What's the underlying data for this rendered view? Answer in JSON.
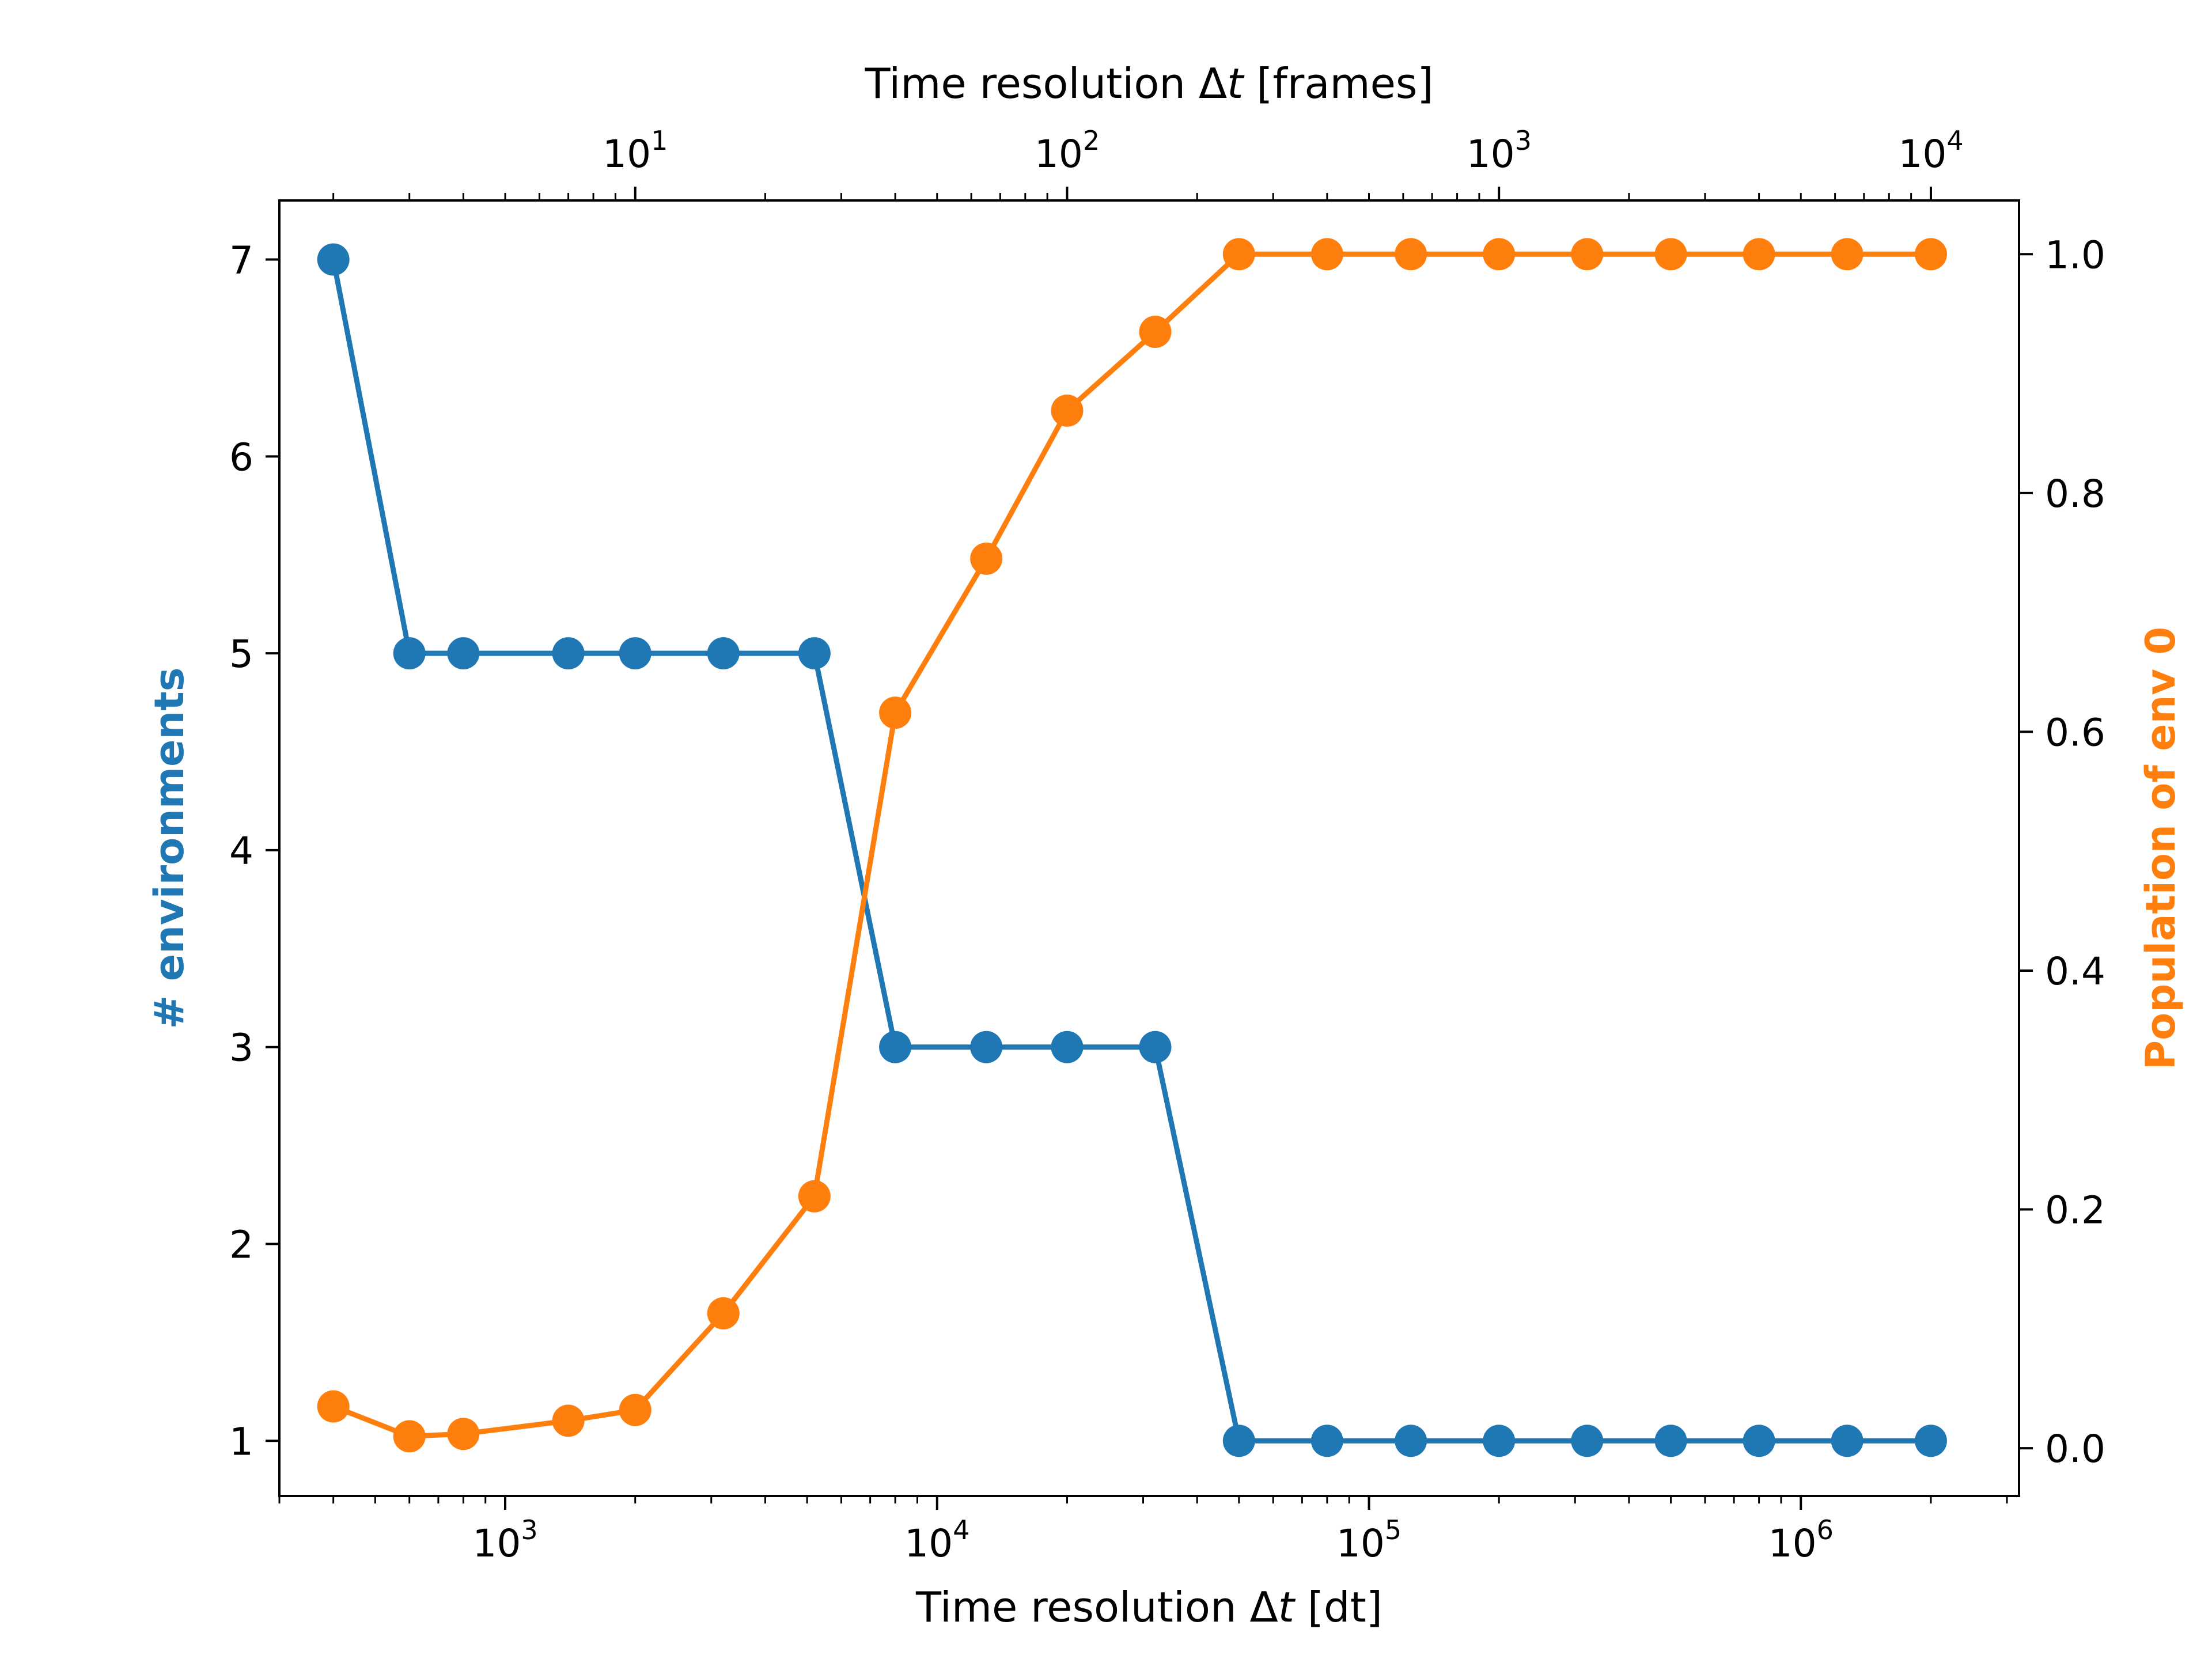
{
  "chart_data": {
    "type": "line",
    "x_bottom": {
      "label_prefix": "Time resolution Δ",
      "label_var": "t",
      "label_suffix": " [dt]",
      "scale": "log",
      "lim": [
        300,
        3200000
      ],
      "major_ticks": [
        {
          "value": 1000,
          "base": "10",
          "exp": "3"
        },
        {
          "value": 10000,
          "base": "10",
          "exp": "4"
        },
        {
          "value": 100000,
          "base": "10",
          "exp": "5"
        },
        {
          "value": 1000000,
          "base": "10",
          "exp": "6"
        }
      ]
    },
    "x_top": {
      "label_prefix": "Time resolution Δ",
      "label_var": "t",
      "label_suffix": " [frames]",
      "scale": "log",
      "lim": [
        1.5,
        16000
      ],
      "major_ticks": [
        {
          "value": 10,
          "base": "10",
          "exp": "1"
        },
        {
          "value": 100,
          "base": "10",
          "exp": "2"
        },
        {
          "value": 1000,
          "base": "10",
          "exp": "3"
        },
        {
          "value": 10000,
          "base": "10",
          "exp": "4"
        }
      ]
    },
    "y_left": {
      "label": "# environments",
      "lim": [
        0.72,
        7.3
      ],
      "ticks": [
        "1",
        "2",
        "3",
        "4",
        "5",
        "6",
        "7"
      ],
      "color": "#1f77b4"
    },
    "y_right": {
      "label": "Population of env 0",
      "lim": [
        -0.04,
        1.045
      ],
      "ticks": [
        "0.0",
        "0.2",
        "0.4",
        "0.6",
        "0.8",
        "1.0"
      ],
      "color": "#ff7f0e"
    },
    "x": [
      400,
      600,
      800,
      1400,
      2000,
      3200,
      5200,
      8000,
      13000,
      20000,
      32000,
      50000,
      80000,
      125000,
      200000,
      320000,
      500000,
      800000,
      1280000,
      2000000
    ],
    "series": [
      {
        "name": "# environments",
        "axis": "left",
        "color": "#1f77b4",
        "values": [
          7,
          5,
          5,
          5,
          5,
          5,
          5,
          3,
          3,
          3,
          3,
          1,
          1,
          1,
          1,
          1,
          1,
          1,
          1,
          1
        ]
      },
      {
        "name": "Population of env 0",
        "axis": "right",
        "color": "#ff7f0e",
        "values": [
          0.035,
          0.01,
          0.012,
          0.023,
          0.032,
          0.113,
          0.211,
          0.616,
          0.745,
          0.869,
          0.935,
          1.0,
          1.0,
          1.0,
          1.0,
          1.0,
          1.0,
          1.0,
          1.0,
          1.0
        ]
      }
    ]
  }
}
